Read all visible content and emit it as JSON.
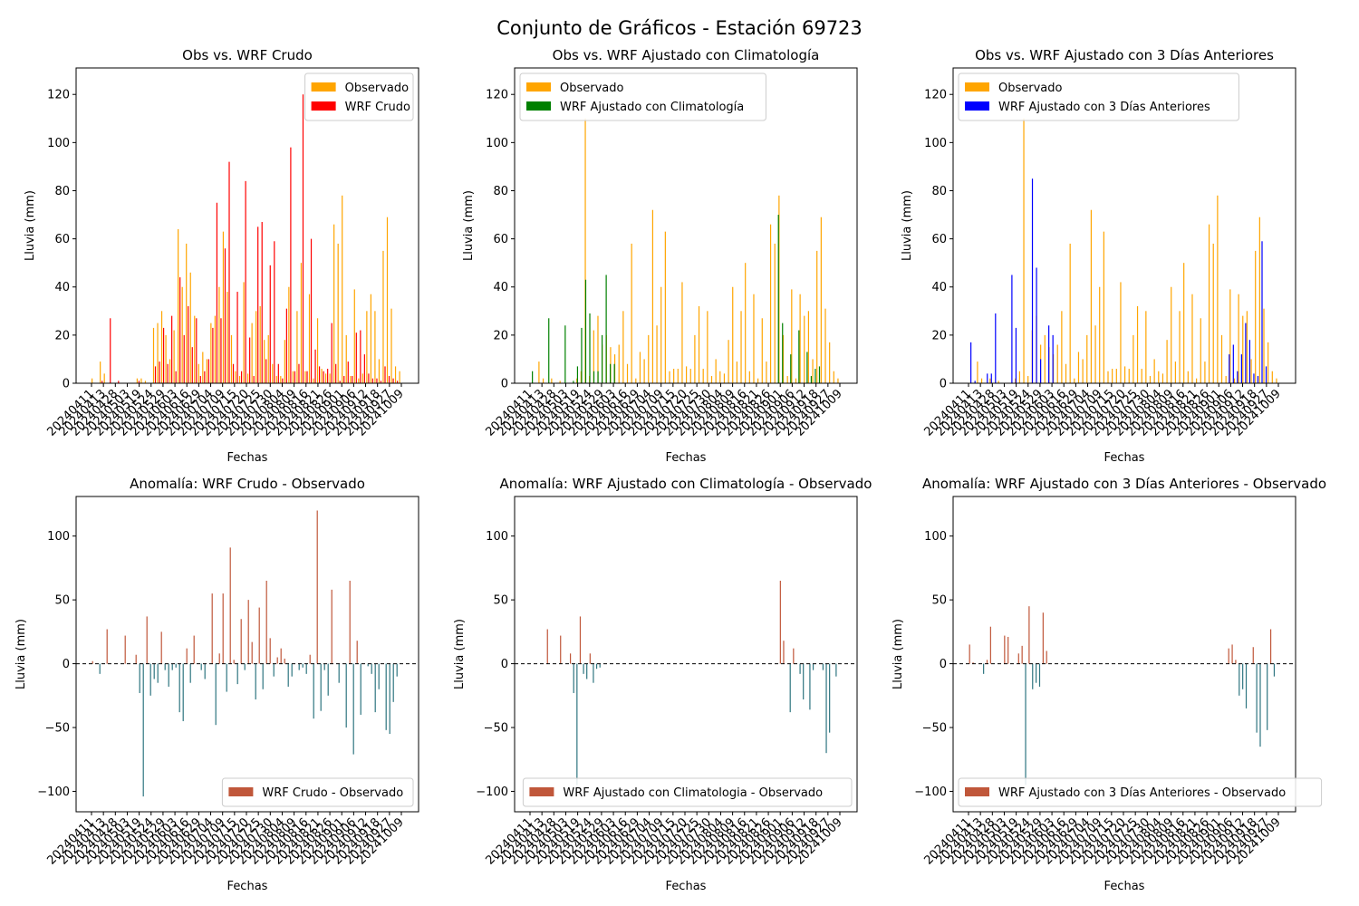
{
  "figure": {
    "suptitle": "Conjunto de Gráficos - Estación 69723",
    "colors": {
      "observed": "#ffa500",
      "wrf_crudo": "#ff0000",
      "wrf_clim": "#008000",
      "wrf_3dias": "#0000ff",
      "anomaly_positive": "#c0573a",
      "anomaly_negative": "#2e7580"
    }
  },
  "chart_data": [
    {
      "id": "p1",
      "type": "bar",
      "title": "Obs vs. WRF Crudo",
      "xlabel": "Fechas",
      "ylabel": "Lluvia (mm)",
      "ylim": [
        0,
        131
      ],
      "yticks": [
        0,
        20,
        40,
        60,
        80,
        100,
        120
      ],
      "legend_position": "upper-right",
      "xtick_labels": [
        "20240411",
        "20240413",
        "20240428",
        "20240503",
        "20240519",
        "20240524",
        "20240529",
        "20240603",
        "20240616",
        "20240629",
        "20240704",
        "20240709",
        "20240715",
        "20240720",
        "20240725",
        "20240730",
        "20240804",
        "20240809",
        "20240816",
        "20240821",
        "20240826",
        "20240901",
        "20240906",
        "20240912",
        "20240918",
        "20240927",
        "20241009"
      ],
      "series": [
        {
          "name": "Observado",
          "role": "observed",
          "values": [
            2,
            0,
            9,
            4,
            0,
            0,
            0,
            0,
            0,
            0,
            0,
            2,
            2,
            1,
            0,
            23,
            25,
            30,
            20,
            10,
            22,
            64,
            40,
            58,
            46,
            28,
            8,
            13,
            10,
            25,
            28,
            40,
            63,
            38,
            20,
            5,
            3,
            42,
            4,
            25,
            30,
            32,
            18,
            20,
            8,
            3,
            3,
            18,
            40,
            5,
            30,
            50,
            5,
            37,
            2,
            27,
            6,
            4,
            4,
            66,
            58,
            78,
            20,
            3,
            39,
            2,
            4,
            30,
            37,
            30,
            10,
            55,
            69,
            31,
            7,
            5
          ]
        },
        {
          "name": "WRF Crudo",
          "role": "wrf_crudo",
          "values": [
            0,
            0,
            1,
            0,
            27,
            0,
            1,
            0,
            0,
            0,
            0,
            1,
            0,
            0,
            0,
            7,
            9,
            23,
            8,
            28,
            5,
            44,
            20,
            32,
            15,
            27,
            3,
            5,
            10,
            23,
            75,
            27,
            56,
            92,
            8,
            38,
            5,
            84,
            19,
            3,
            65,
            67,
            10,
            49,
            59,
            8,
            2,
            31,
            98,
            5,
            8,
            120,
            5,
            60,
            14,
            7,
            5,
            6,
            25,
            8,
            1,
            3,
            9,
            3,
            21,
            22,
            12,
            4,
            2,
            2,
            1,
            7,
            3,
            2,
            1,
            0
          ]
        }
      ]
    },
    {
      "id": "p2",
      "type": "bar",
      "title": "Obs vs. WRF Ajustado con Climatología",
      "xlabel": "Fechas",
      "ylabel": "Lluvia (mm)",
      "ylim": [
        0,
        131
      ],
      "yticks": [
        0,
        20,
        40,
        60,
        80,
        100,
        120
      ],
      "legend_position": "upper-left",
      "xtick_labels": [
        "20240411",
        "20240413",
        "20240428",
        "20240503",
        "20240519",
        "20240524",
        "20240529",
        "20240603",
        "20240616",
        "20240629",
        "20240704",
        "20240709",
        "20240715",
        "20240720",
        "20240725",
        "20240730",
        "20240804",
        "20240809",
        "20240816",
        "20240821",
        "20240826",
        "20240901",
        "20240906",
        "20240912",
        "20240918",
        "20240927",
        "20241009"
      ],
      "series": [
        {
          "name": "Observado",
          "role": "observed",
          "values": [
            0,
            0,
            9,
            2,
            0,
            2,
            0,
            1,
            0,
            0,
            0,
            2,
            5,
            110,
            3,
            22,
            28,
            16,
            20,
            15,
            12,
            16,
            30,
            8,
            58,
            2,
            13,
            10,
            20,
            72,
            24,
            40,
            63,
            5,
            6,
            6,
            42,
            7,
            6,
            20,
            32,
            6,
            30,
            3,
            10,
            5,
            4,
            18,
            40,
            9,
            30,
            50,
            5,
            37,
            2,
            27,
            9,
            66,
            58,
            78,
            20,
            3,
            39,
            2,
            37,
            28,
            30,
            10,
            55,
            69,
            31,
            17,
            5,
            2
          ]
        },
        {
          "name": "WRF Ajustado con Climatología",
          "role": "wrf_clim",
          "values": [
            5,
            0,
            0,
            0,
            27,
            0,
            0,
            0,
            24,
            0,
            1,
            7,
            23,
            43,
            29,
            5,
            5,
            20,
            45,
            8,
            8,
            0,
            0,
            0,
            0,
            0,
            0,
            0,
            0,
            0,
            0,
            0,
            0,
            0,
            0,
            0,
            0,
            0,
            0,
            0,
            0,
            0,
            0,
            0,
            0,
            0,
            0,
            0,
            0,
            0,
            0,
            0,
            0,
            0,
            0,
            0,
            0,
            0,
            0,
            0,
            70,
            25,
            0,
            12,
            0,
            22,
            0,
            13,
            3,
            6,
            7,
            0,
            0,
            0,
            0,
            0
          ]
        }
      ]
    },
    {
      "id": "p3",
      "type": "bar",
      "title": "Obs vs. WRF Ajustado con 3 Días Anteriores",
      "xlabel": "Fechas",
      "ylabel": "Lluvia (mm)",
      "ylim": [
        0,
        131
      ],
      "yticks": [
        0,
        20,
        40,
        60,
        80,
        100,
        120
      ],
      "legend_position": "upper-left",
      "xtick_labels": [
        "20240411",
        "20240413",
        "20240428",
        "20240503",
        "20240519",
        "20240524",
        "20240529",
        "20240603",
        "20240616",
        "20240629",
        "20240704",
        "20240709",
        "20240715",
        "20240720",
        "20240725",
        "20240730",
        "20240804",
        "20240809",
        "20240816",
        "20240821",
        "20240826",
        "20240901",
        "20240906",
        "20240912",
        "20240918",
        "20240927",
        "20241009"
      ],
      "series": [
        {
          "name": "Observado",
          "role": "observed",
          "values": [
            0,
            0,
            9,
            2,
            0,
            2,
            0,
            1,
            0,
            0,
            0,
            2,
            5,
            110,
            3,
            22,
            28,
            16,
            20,
            15,
            12,
            16,
            30,
            8,
            58,
            2,
            13,
            10,
            20,
            72,
            24,
            40,
            63,
            5,
            6,
            6,
            42,
            7,
            6,
            20,
            32,
            6,
            30,
            3,
            10,
            5,
            4,
            18,
            40,
            9,
            30,
            50,
            5,
            37,
            2,
            27,
            9,
            66,
            58,
            78,
            20,
            3,
            39,
            2,
            37,
            28,
            30,
            10,
            55,
            69,
            31,
            17,
            5,
            2
          ]
        },
        {
          "name": "WRF Ajustado con 3 Días Anteriores",
          "role": "wrf_3dias",
          "values": [
            17,
            1,
            0,
            0,
            4,
            4,
            29,
            0,
            0,
            0,
            45,
            23,
            0,
            0,
            0,
            85,
            48,
            10,
            0,
            24,
            20,
            0,
            0,
            0,
            0,
            0,
            0,
            0,
            0,
            0,
            0,
            0,
            0,
            0,
            0,
            0,
            0,
            0,
            0,
            0,
            0,
            0,
            0,
            0,
            0,
            0,
            0,
            0,
            0,
            0,
            0,
            0,
            0,
            0,
            0,
            0,
            0,
            0,
            0,
            0,
            0,
            0,
            0,
            12,
            16,
            5,
            12,
            25,
            18,
            4,
            3,
            59,
            7,
            0,
            0,
            0
          ]
        }
      ]
    },
    {
      "id": "p4",
      "type": "bar",
      "title": "Anomalía: WRF Crudo - Observado",
      "xlabel": "Fechas",
      "ylabel": "Lluvia (mm)",
      "ylim": [
        -116,
        131
      ],
      "yticks": [
        -100,
        -50,
        0,
        50,
        100
      ],
      "legend_position": "lower-right",
      "xtick_labels": [
        "20240411",
        "20240413",
        "20240428",
        "20240503",
        "20240519",
        "20240524",
        "20240529",
        "20240603",
        "20240616",
        "20240629",
        "20240704",
        "20240709",
        "20240715",
        "20240720",
        "20240725",
        "20240730",
        "20240804",
        "20240809",
        "20240816",
        "20240821",
        "20240826",
        "20240901",
        "20240906",
        "20240912",
        "20240918",
        "20240927",
        "20241009"
      ],
      "series": [
        {
          "name": "WRF Crudo - Observado",
          "role": "anomaly",
          "values": [
            2,
            0,
            -8,
            0,
            27,
            0,
            0,
            0,
            0,
            22,
            0,
            0,
            7,
            -23,
            -104,
            37,
            -25,
            -12,
            -15,
            25,
            -5,
            -18,
            -5,
            -3,
            -38,
            -45,
            12,
            -15,
            22,
            0,
            -5,
            -12,
            0,
            55,
            -48,
            8,
            55,
            -22,
            91,
            3,
            -16,
            35,
            -5,
            50,
            17,
            -28,
            44,
            -20,
            65,
            20,
            -10,
            5,
            12,
            4,
            -18,
            -10,
            0,
            -5,
            -3,
            -8,
            7,
            -43,
            120,
            -37,
            -5,
            -25,
            58,
            0,
            -15,
            0,
            -50,
            65,
            -71,
            18,
            -40,
            0,
            -2,
            -8,
            -38,
            -20,
            0,
            -52,
            -55,
            -30,
            -10,
            0
          ]
        }
      ]
    },
    {
      "id": "p5",
      "type": "bar",
      "title": "Anomalía: WRF Ajustado con Climatología - Observado",
      "xlabel": "Fechas",
      "ylabel": "Lluvia (mm)",
      "ylim": [
        -116,
        131
      ],
      "yticks": [
        -100,
        -50,
        0,
        50,
        100
      ],
      "legend_position": "lower-right",
      "xtick_labels": [
        "20240411",
        "20240413",
        "20240428",
        "20240503",
        "20240519",
        "20240524",
        "20240529",
        "20240603",
        "20240616",
        "20240629",
        "20240704",
        "20240709",
        "20240715",
        "20240720",
        "20240725",
        "20240730",
        "20240804",
        "20240809",
        "20240816",
        "20240821",
        "20240826",
        "20240901",
        "20240906",
        "20240912",
        "20240918",
        "20240927",
        "20241009"
      ],
      "series": [
        {
          "name": "WRF Ajustado con Climatologia - Observado",
          "role": "anomaly",
          "values": [
            0,
            0,
            0,
            0,
            0,
            27,
            0,
            0,
            0,
            22,
            0,
            0,
            8,
            -23,
            -95,
            37,
            -8,
            -12,
            8,
            -15,
            -4,
            -3,
            0,
            0,
            0,
            0,
            0,
            0,
            0,
            0,
            0,
            0,
            0,
            0,
            0,
            0,
            0,
            0,
            0,
            0,
            0,
            0,
            0,
            0,
            0,
            0,
            0,
            0,
            0,
            0,
            0,
            0,
            0,
            0,
            0,
            0,
            0,
            0,
            0,
            0,
            0,
            0,
            0,
            0,
            0,
            0,
            0,
            0,
            0,
            0,
            0,
            0,
            0,
            0,
            0,
            0,
            65,
            18,
            0,
            -38,
            12,
            0,
            -8,
            -28,
            0,
            -36,
            -5,
            0,
            0,
            -5,
            -70,
            -54,
            0,
            -10,
            0
          ]
        }
      ]
    },
    {
      "id": "p6",
      "type": "bar",
      "title": "Anomalía: WRF Ajustado con 3 Días Anteriores - Observado",
      "xlabel": "Fechas",
      "ylabel": "Lluvia (mm)",
      "ylim": [
        -116,
        131
      ],
      "yticks": [
        -100,
        -50,
        0,
        50,
        100
      ],
      "legend_position": "lower-left",
      "xtick_labels": [
        "20240411",
        "20240413",
        "20240428",
        "20240503",
        "20240519",
        "20240524",
        "20240529",
        "20240603",
        "20240616",
        "20240629",
        "20240704",
        "20240709",
        "20240715",
        "20240720",
        "20240725",
        "20240730",
        "20240804",
        "20240809",
        "20240816",
        "20240821",
        "20240826",
        "20240901",
        "20240906",
        "20240912",
        "20240918",
        "20240927",
        "20241009"
      ],
      "series": [
        {
          "name": "WRF Ajustado con 3 Días Anteriores - Observado",
          "role": "anomaly",
          "values": [
            15,
            1,
            0,
            0,
            -8,
            3,
            29,
            0,
            0,
            0,
            22,
            21,
            0,
            0,
            8,
            14,
            -95,
            45,
            -20,
            -15,
            -18,
            40,
            10,
            0,
            0,
            0,
            0,
            0,
            0,
            0,
            0,
            0,
            0,
            0,
            0,
            0,
            0,
            0,
            0,
            0,
            0,
            0,
            0,
            0,
            0,
            0,
            0,
            0,
            0,
            0,
            0,
            0,
            0,
            0,
            0,
            0,
            0,
            0,
            0,
            0,
            0,
            0,
            0,
            0,
            0,
            0,
            0,
            0,
            0,
            0,
            0,
            0,
            0,
            0,
            12,
            15,
            3,
            -25,
            -20,
            -35,
            0,
            13,
            -54,
            -65,
            0,
            -52,
            27,
            -10,
            0
          ]
        }
      ]
    }
  ]
}
